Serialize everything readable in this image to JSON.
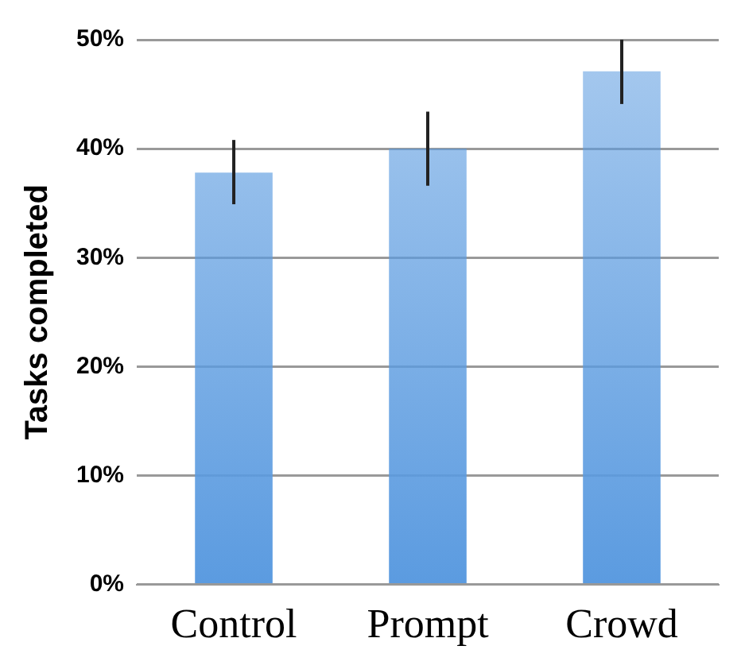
{
  "chart_data": {
    "type": "bar",
    "ylabel": "Tasks completed",
    "categories": [
      "Control",
      "Prompt",
      "Crowd"
    ],
    "values": [
      37.8,
      40,
      47.1
    ],
    "color": "#5b9be0",
    "errors": [
      [
        34.9,
        40.8
      ],
      [
        36.6,
        43.4
      ],
      [
        44.1,
        50
      ]
    ],
    "ylim": [
      0,
      50
    ],
    "yticks": [
      {
        "value": 0,
        "label": "0%"
      },
      {
        "value": 10,
        "label": "10%"
      },
      {
        "value": 20,
        "label": "20%"
      },
      {
        "value": 30,
        "label": "30%"
      },
      {
        "value": 40,
        "label": "40%"
      },
      {
        "value": 50,
        "label": "50%"
      }
    ],
    "grid": "y",
    "legend": false
  }
}
